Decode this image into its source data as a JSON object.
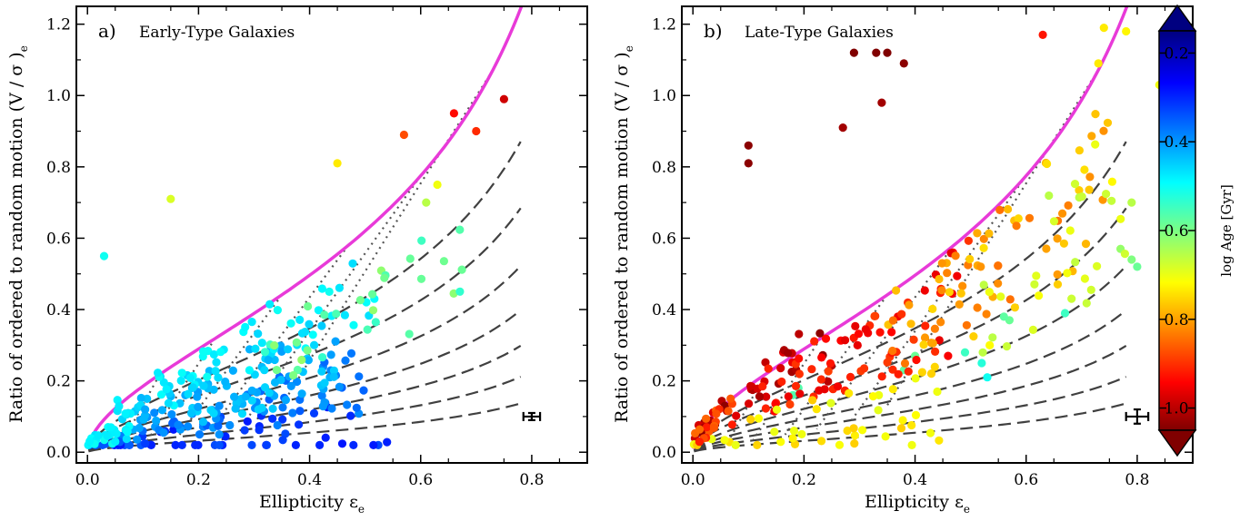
{
  "chart_data": [
    {
      "type": "scatter",
      "panel_label": "a)",
      "title": "Early-Type Galaxies",
      "xlabel": "Ellipticity ε",
      "xlabel_sub": "e",
      "ylabel": "Ratio of ordered to random motion (V / σ )",
      "ylabel_sub": "e",
      "xlim": [
        -0.02,
        0.9
      ],
      "ylim": [
        -0.03,
        1.25
      ],
      "xticks": [
        0.0,
        0.2,
        0.4,
        0.6,
        0.8
      ],
      "xtick_labels": [
        "0.0",
        "0.2",
        "0.4",
        "0.6",
        "0.8"
      ],
      "yticks": [
        0.0,
        0.2,
        0.4,
        0.6,
        0.8,
        1.0,
        1.2
      ],
      "ytick_labels": [
        "0.0",
        "0.2",
        "0.4",
        "0.6",
        "0.8",
        "1.0",
        "1.2"
      ],
      "color_by": "log Age [Gyr]",
      "typical_error": {
        "x": 0.8,
        "y": 0.1,
        "dx": 0.015,
        "dy": 0.01
      },
      "points_seed": 7,
      "points": [
        {
          "x": 0.75,
          "y": 0.99,
          "age": 0.22
        },
        {
          "x": 0.66,
          "y": 0.95,
          "age": 0.27
        },
        {
          "x": 0.7,
          "y": 0.9,
          "age": 0.3
        },
        {
          "x": 0.57,
          "y": 0.89,
          "age": 0.33
        },
        {
          "x": 0.45,
          "y": 0.81,
          "age": 0.47
        },
        {
          "x": 0.15,
          "y": 0.71,
          "age": 0.52
        },
        {
          "x": 0.63,
          "y": 0.75,
          "age": 0.5
        },
        {
          "x": 0.61,
          "y": 0.7,
          "age": 0.55
        },
        {
          "x": 0.03,
          "y": 0.55,
          "age": 0.7
        }
      ],
      "clusters": [
        {
          "n": 55,
          "x": [
            0.0,
            0.55
          ],
          "yfrac": [
            -0.05,
            0.25
          ],
          "age": [
            0.86,
            0.92
          ]
        },
        {
          "n": 70,
          "x": [
            0.05,
            0.5
          ],
          "yfrac": [
            0.15,
            0.45
          ],
          "age": [
            0.8,
            0.86
          ]
        },
        {
          "n": 85,
          "x": [
            0.08,
            0.45
          ],
          "yfrac": [
            0.3,
            0.7
          ],
          "age": [
            0.74,
            0.8
          ]
        },
        {
          "n": 60,
          "x": [
            0.05,
            0.52
          ],
          "yfrac": [
            0.55,
            0.95
          ],
          "age": [
            0.7,
            0.75
          ]
        },
        {
          "n": 30,
          "x": [
            0.3,
            0.7
          ],
          "yfrac": [
            0.45,
            0.8
          ],
          "age": [
            0.58,
            0.67
          ]
        },
        {
          "n": 28,
          "x": [
            0.0,
            0.08
          ],
          "yfrac": [
            0.2,
            0.7
          ],
          "age": [
            0.7,
            0.74
          ]
        }
      ]
    },
    {
      "type": "scatter",
      "panel_label": "b)",
      "title": "Late-Type Galaxies",
      "xlabel": "Ellipticity ε",
      "xlabel_sub": "e",
      "ylabel": "Ratio of ordered to random motion (V / σ )",
      "ylabel_sub": "e",
      "xlim": [
        -0.02,
        0.9
      ],
      "ylim": [
        -0.03,
        1.25
      ],
      "xticks": [
        0.0,
        0.2,
        0.4,
        0.6,
        0.8
      ],
      "xtick_labels": [
        "0.0",
        "0.2",
        "0.4",
        "0.6",
        "0.8"
      ],
      "yticks": [
        0.0,
        0.2,
        0.4,
        0.6,
        0.8,
        1.0,
        1.2
      ],
      "ytick_labels": [
        "0.0",
        "0.2",
        "0.4",
        "0.6",
        "0.8",
        "1.0",
        "1.2"
      ],
      "color_by": "log Age [Gyr]",
      "typical_error": {
        "x": 0.8,
        "y": 0.1,
        "dx": 0.02,
        "dy": 0.02
      },
      "points_seed": 23,
      "points": [
        {
          "x": 0.29,
          "y": 1.12,
          "age": 0.15
        },
        {
          "x": 0.33,
          "y": 1.12,
          "age": 0.15
        },
        {
          "x": 0.35,
          "y": 1.12,
          "age": 0.15
        },
        {
          "x": 0.38,
          "y": 1.09,
          "age": 0.16
        },
        {
          "x": 0.34,
          "y": 0.98,
          "age": 0.18
        },
        {
          "x": 0.63,
          "y": 1.17,
          "age": 0.28
        },
        {
          "x": 0.74,
          "y": 1.19,
          "age": 0.47
        },
        {
          "x": 0.78,
          "y": 1.18,
          "age": 0.48
        },
        {
          "x": 0.73,
          "y": 1.09,
          "age": 0.47
        },
        {
          "x": 0.84,
          "y": 1.03,
          "age": 0.5
        },
        {
          "x": 0.88,
          "y": 1.01,
          "age": 0.52
        },
        {
          "x": 0.1,
          "y": 0.86,
          "age": 0.16
        },
        {
          "x": 0.1,
          "y": 0.81,
          "age": 0.16
        },
        {
          "x": 0.27,
          "y": 0.91,
          "age": 0.18
        },
        {
          "x": 0.79,
          "y": 0.7,
          "age": 0.55
        },
        {
          "x": 0.77,
          "y": 0.57,
          "age": 0.58
        },
        {
          "x": 0.79,
          "y": 0.54,
          "age": 0.6
        },
        {
          "x": 0.8,
          "y": 0.52,
          "age": 0.62
        },
        {
          "x": 0.67,
          "y": 0.39,
          "age": 0.66
        },
        {
          "x": 0.53,
          "y": 0.21,
          "age": 0.7
        },
        {
          "x": 0.52,
          "y": 0.25,
          "age": 0.68
        },
        {
          "x": 0.49,
          "y": 0.28,
          "age": 0.66
        },
        {
          "x": 0.57,
          "y": 0.37,
          "age": 0.62
        },
        {
          "x": 0.56,
          "y": 0.38,
          "age": 0.63
        },
        {
          "x": 0.18,
          "y": 0.16,
          "age": 0.64
        },
        {
          "x": 0.19,
          "y": 0.18,
          "age": 0.64
        },
        {
          "x": 0.38,
          "y": 0.23,
          "age": 0.63
        },
        {
          "x": 0.4,
          "y": 0.27,
          "age": 0.62
        }
      ],
      "clusters": [
        {
          "n": 40,
          "x": [
            0.0,
            0.25
          ],
          "yfrac": [
            0.5,
            1.1
          ],
          "age": [
            0.16,
            0.24
          ]
        },
        {
          "n": 70,
          "x": [
            0.12,
            0.5
          ],
          "yfrac": [
            0.45,
            0.95
          ],
          "age": [
            0.24,
            0.32
          ]
        },
        {
          "n": 70,
          "x": [
            0.35,
            0.75
          ],
          "yfrac": [
            0.5,
            0.95
          ],
          "age": [
            0.36,
            0.46
          ]
        },
        {
          "n": 45,
          "x": [
            0.0,
            0.45
          ],
          "yfrac": [
            0.05,
            0.45
          ],
          "age": [
            0.44,
            0.52
          ]
        },
        {
          "n": 30,
          "x": [
            0.5,
            0.78
          ],
          "yfrac": [
            0.4,
            0.85
          ],
          "age": [
            0.48,
            0.55
          ]
        },
        {
          "n": 18,
          "x": [
            0.0,
            0.08
          ],
          "yfrac": [
            0.4,
            1.0
          ],
          "age": [
            0.28,
            0.36
          ]
        }
      ]
    }
  ],
  "colorbar": {
    "label": "log Age [Gyr]",
    "range": [
      0.15,
      1.05
    ],
    "ticks": [
      0.2,
      0.4,
      0.6,
      0.8,
      1.0
    ],
    "tick_labels": [
      "0.2",
      "0.4",
      "0.6",
      "0.8",
      "1.0"
    ],
    "reversed": true,
    "colormap": "jet"
  },
  "model_curves": {
    "edge_on_limit_color": "#e83ad8",
    "dashed_color": "#404040",
    "dotted_color": "#555555",
    "dashed_fractions": [
      1.0,
      0.7,
      0.55,
      0.42,
      0.32,
      0.24,
      0.17,
      0.11
    ]
  }
}
